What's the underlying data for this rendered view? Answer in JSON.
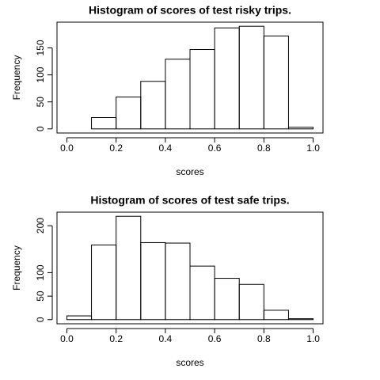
{
  "chart_data": [
    {
      "type": "histogram",
      "title": "Histogram of scores of test risky trips.",
      "xlabel": "scores",
      "ylabel": "Frequency",
      "bins": [
        0,
        0.1,
        0.2,
        0.3,
        0.4,
        0.5,
        0.6,
        0.7,
        0.8,
        0.9,
        1.0
      ],
      "values": [
        0,
        21,
        59,
        88,
        129,
        147,
        187,
        190,
        172,
        3
      ],
      "xlim": [
        -0.04,
        1.04
      ],
      "ylim": [
        -7.6,
        197.6
      ],
      "xticks": [
        {
          "value": 0,
          "label": "0.0"
        },
        0.2,
        0.4,
        0.6,
        0.8,
        {
          "value": 1,
          "label": "1.0"
        }
      ],
      "yticks": [
        0,
        50,
        100,
        150
      ]
    },
    {
      "type": "histogram",
      "title": "Histogram of scores of test safe trips.",
      "xlabel": "scores",
      "ylabel": "Frequency",
      "bins": [
        0,
        0.1,
        0.2,
        0.3,
        0.4,
        0.5,
        0.6,
        0.7,
        0.8,
        0.9,
        1.0
      ],
      "values": [
        8,
        159,
        220,
        164,
        163,
        114,
        88,
        75,
        20,
        2
      ],
      "xlim": [
        -0.04,
        1.04
      ],
      "ylim": [
        -8.8,
        228.8
      ],
      "xticks": [
        {
          "value": 0,
          "label": "0.0"
        },
        0.2,
        0.4,
        0.6,
        0.8,
        {
          "value": 1,
          "label": "1.0"
        }
      ],
      "yticks": [
        0,
        50,
        100,
        200
      ]
    }
  ]
}
